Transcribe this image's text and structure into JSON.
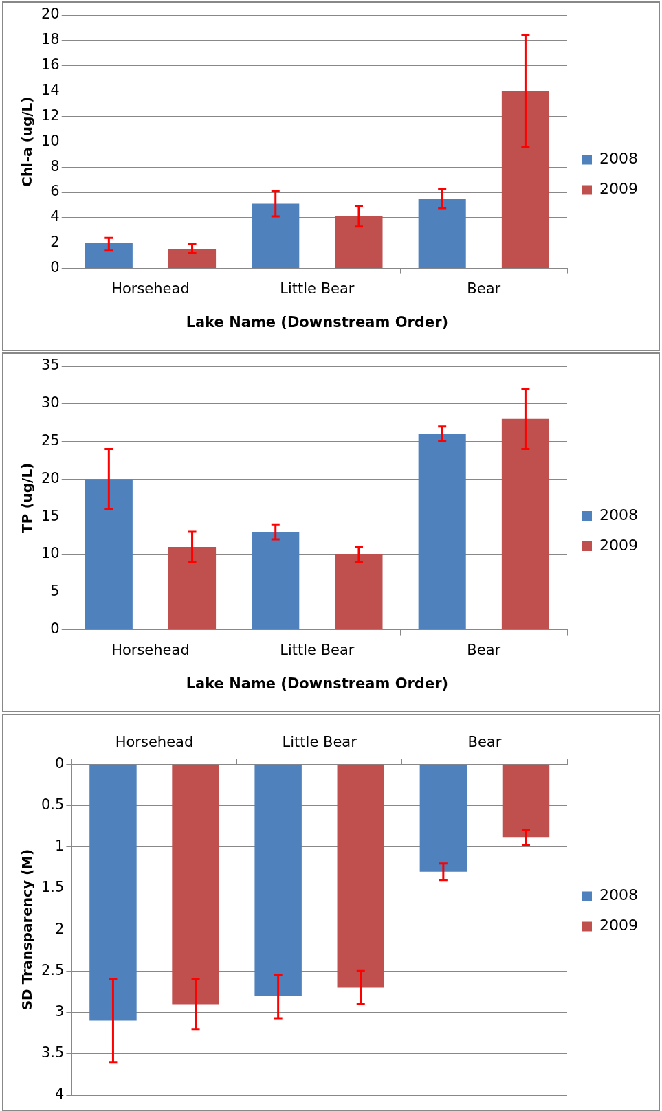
{
  "chart_data": [
    {
      "type": "bar",
      "xlabel": "Lake Name (Downstream Order)",
      "ylabel": "Chl-a (ug/L)",
      "categories": [
        "Horsehead",
        "Little Bear",
        "Bear"
      ],
      "ylim": [
        0,
        20
      ],
      "yticks": [
        0,
        2,
        4,
        6,
        8,
        10,
        12,
        14,
        16,
        18,
        20
      ],
      "grid": "y",
      "legend": "right",
      "series": [
        {
          "name": "2008",
          "color": "#4f81bd",
          "values": [
            2.0,
            5.1,
            5.5
          ],
          "errors": [
            [
              1.4,
              2.4
            ],
            [
              4.1,
              6.1
            ],
            [
              4.75,
              6.3
            ]
          ]
        },
        {
          "name": "2009",
          "color": "#c0504d",
          "values": [
            1.5,
            4.1,
            14.0
          ],
          "errors": [
            [
              1.2,
              1.9
            ],
            [
              3.3,
              4.9
            ],
            [
              9.6,
              18.4
            ]
          ]
        }
      ]
    },
    {
      "type": "bar",
      "xlabel": "Lake Name (Downstream Order)",
      "ylabel": "TP (ug/L)",
      "categories": [
        "Horsehead",
        "Little Bear",
        "Bear"
      ],
      "ylim": [
        0,
        35
      ],
      "yticks": [
        0,
        5,
        10,
        15,
        20,
        25,
        30,
        35
      ],
      "grid": "y",
      "legend": "right",
      "series": [
        {
          "name": "2008",
          "color": "#4f81bd",
          "values": [
            20,
            13,
            26
          ],
          "errors": [
            [
              16,
              24
            ],
            [
              12,
              14
            ],
            [
              25,
              27
            ]
          ]
        },
        {
          "name": "2009",
          "color": "#c0504d",
          "values": [
            11,
            10,
            28
          ],
          "errors": [
            [
              9,
              13
            ],
            [
              9,
              11
            ],
            [
              24,
              32
            ]
          ]
        }
      ]
    },
    {
      "type": "bar",
      "ylabel": "SD Transparency (M)",
      "categories": [
        "Horsehead",
        "Little Bear",
        "Bear"
      ],
      "ylim": [
        4,
        0
      ],
      "yticks": [
        0,
        0.5,
        1,
        1.5,
        2,
        2.5,
        3,
        3.5,
        4
      ],
      "grid": "y",
      "legend": "right",
      "series": [
        {
          "name": "2008",
          "color": "#4f81bd",
          "values": [
            3.1,
            2.8,
            1.3
          ],
          "errors": [
            [
              2.6,
              3.6
            ],
            [
              2.55,
              3.07
            ],
            [
              1.2,
              1.4
            ]
          ]
        },
        {
          "name": "2009",
          "color": "#c0504d",
          "values": [
            2.9,
            2.7,
            0.88
          ],
          "errors": [
            [
              2.6,
              3.2
            ],
            [
              2.5,
              2.9
            ],
            [
              0.8,
              0.98
            ]
          ]
        }
      ]
    }
  ]
}
